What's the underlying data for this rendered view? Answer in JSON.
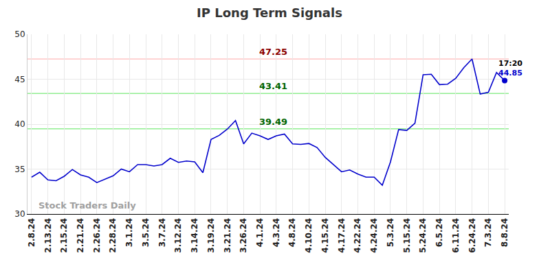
{
  "chart_data": {
    "type": "line",
    "title": "IP Long Term Signals",
    "categories": [
      "2.8.24",
      null,
      "2.13.24",
      null,
      "2.15.24",
      null,
      "2.21.24",
      null,
      "2.26.24",
      null,
      "2.28.24",
      null,
      "3.1.24",
      null,
      "3.5.24",
      null,
      "3.7.24",
      null,
      "3.12.24",
      null,
      "3.14.24",
      null,
      "3.19.24",
      null,
      "3.21.24",
      null,
      "3.26.24",
      null,
      "4.1.24",
      null,
      "4.3.24",
      null,
      "4.8.24",
      null,
      "4.10.24",
      null,
      "4.15.24",
      null,
      "4.17.24",
      null,
      "4.22.24",
      null,
      "4.24.24",
      null,
      "5.3.24",
      null,
      "5.15.24",
      null,
      "5.24.24",
      null,
      "6.5.24",
      null,
      "6.11.24",
      null,
      "6.24.24",
      null,
      "7.3.24",
      null,
      "8.8.24"
    ],
    "values": [
      34.1,
      34.65,
      33.8,
      33.7,
      34.2,
      34.95,
      34.35,
      34.1,
      33.5,
      33.9,
      34.25,
      35.0,
      34.7,
      35.5,
      35.5,
      35.35,
      35.5,
      36.2,
      35.75,
      35.9,
      35.8,
      34.6,
      38.3,
      38.75,
      39.45,
      40.4,
      37.8,
      39.0,
      38.7,
      38.3,
      38.7,
      38.9,
      37.8,
      37.75,
      37.85,
      37.4,
      36.3,
      35.5,
      34.7,
      34.9,
      34.45,
      34.1,
      34.1,
      33.2,
      35.8,
      39.4,
      39.3,
      40.1,
      45.5,
      45.55,
      44.4,
      44.45,
      45.1,
      46.3,
      47.25,
      43.35,
      43.55,
      45.75,
      44.85
    ],
    "color": "#0000cc",
    "ylim": [
      30,
      50
    ],
    "yticks": [
      30,
      35,
      40,
      45,
      50
    ],
    "grid": true,
    "levels": [
      {
        "value": 47.25,
        "color": "#ffc4c4",
        "text_color": "#8b0000"
      },
      {
        "value": 43.41,
        "color": "#90ee90",
        "text_color": "#006400"
      },
      {
        "value": 39.49,
        "color": "#90ee90",
        "text_color": "#006400"
      }
    ],
    "last_point": {
      "time": "17:20",
      "value": 44.85,
      "color": "#0000cc"
    },
    "watermark": "Stock Traders Daily"
  }
}
